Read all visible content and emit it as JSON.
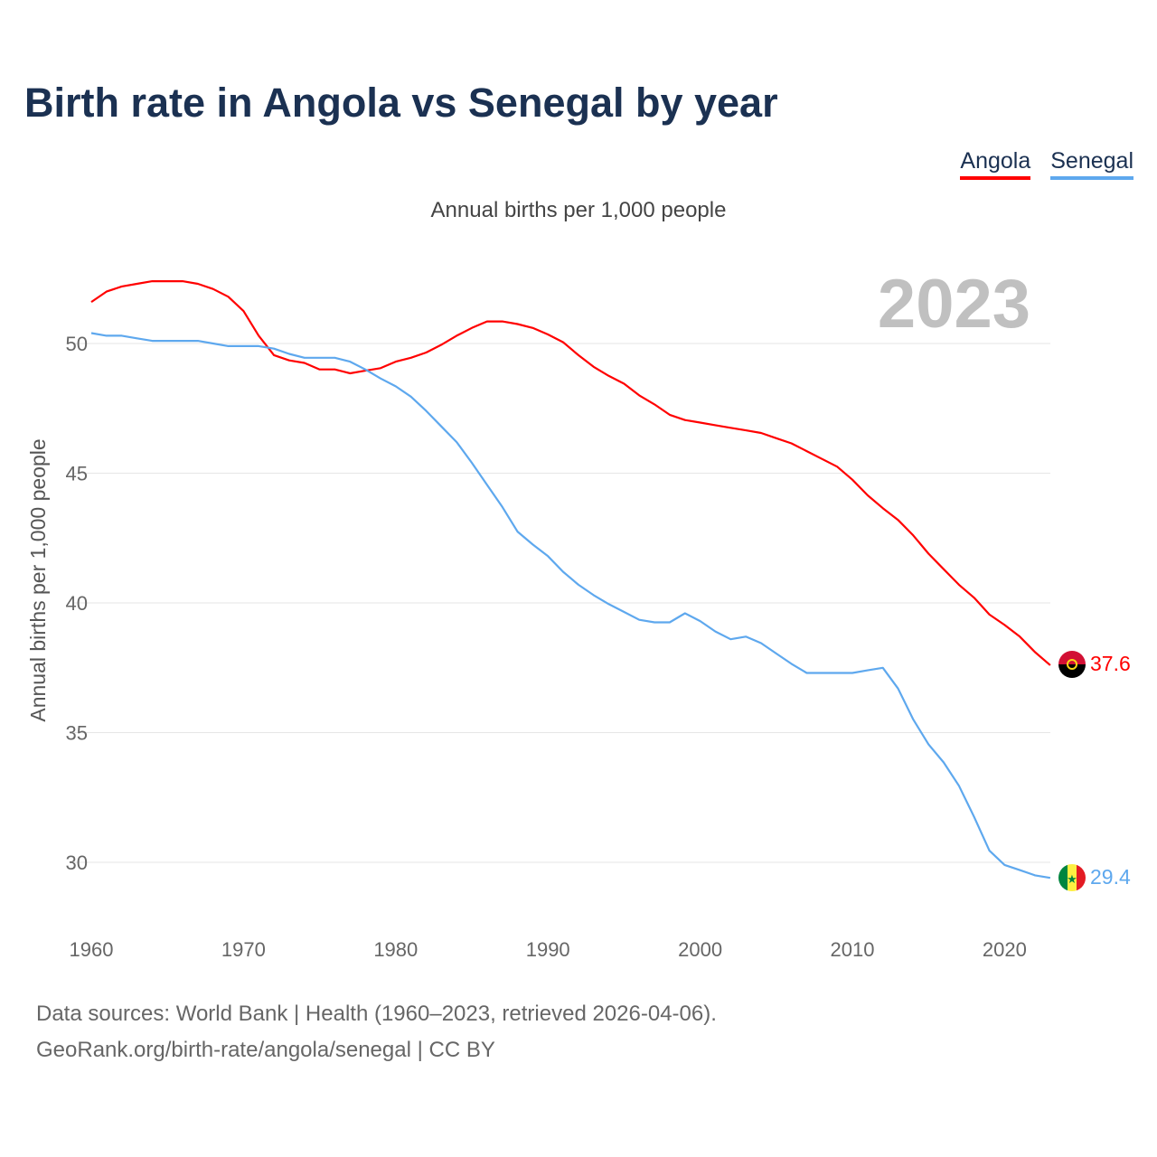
{
  "title": "Birth rate in Angola vs Senegal by year",
  "footer": {
    "line1": "Data sources: World Bank | Health (1960–2023, retrieved 2026-04-06).",
    "line2": "GeoRank.org/birth-rate/angola/senegal | CC BY"
  },
  "chart_data": {
    "type": "line",
    "title": "Birth rate in Angola vs Senegal by year",
    "subtitle": "Annual births per 1,000 people",
    "ylabel": "Annual births per 1,000 people",
    "xlabel": "",
    "year_label": "2023",
    "xlim": [
      1960,
      2023
    ],
    "ylim": [
      28,
      53
    ],
    "xticks": [
      "1960",
      "1970",
      "1980",
      "1990",
      "2000",
      "2010",
      "2020"
    ],
    "yticks": [
      "30",
      "35",
      "40",
      "45",
      "50"
    ],
    "grid": true,
    "legend_placement": "top-right",
    "x": [
      1960,
      1961,
      1962,
      1963,
      1964,
      1965,
      1966,
      1967,
      1968,
      1969,
      1970,
      1971,
      1972,
      1973,
      1974,
      1975,
      1976,
      1977,
      1978,
      1979,
      1980,
      1981,
      1982,
      1983,
      1984,
      1985,
      1986,
      1987,
      1988,
      1989,
      1990,
      1991,
      1992,
      1993,
      1994,
      1995,
      1996,
      1997,
      1998,
      1999,
      2000,
      2001,
      2002,
      2003,
      2004,
      2005,
      2006,
      2007,
      2008,
      2009,
      2010,
      2011,
      2012,
      2013,
      2014,
      2015,
      2016,
      2017,
      2018,
      2019,
      2020,
      2021,
      2022,
      2023
    ],
    "series": [
      {
        "name": "Angola",
        "color": "#ff0000",
        "end_label": "37.6",
        "values": [
          51.6,
          52.0,
          52.2,
          52.3,
          52.4,
          52.4,
          52.4,
          52.3,
          52.1,
          51.8,
          51.25,
          50.3,
          49.55,
          49.35,
          49.25,
          49.0,
          49.0,
          48.85,
          48.95,
          49.05,
          49.3,
          49.45,
          49.65,
          49.95,
          50.3,
          50.6,
          50.85,
          50.85,
          50.75,
          50.6,
          50.35,
          50.05,
          49.55,
          49.1,
          48.75,
          48.45,
          48.0,
          47.65,
          47.25,
          47.05,
          46.95,
          46.85,
          46.75,
          46.65,
          46.55,
          46.35,
          46.15,
          45.85,
          45.55,
          45.25,
          44.75,
          44.15,
          43.65,
          43.2,
          42.6,
          41.9,
          41.3,
          40.7,
          40.2,
          39.55,
          39.15,
          38.7,
          38.1,
          37.6
        ]
      },
      {
        "name": "Senegal",
        "color": "#5ea8ee",
        "end_label": "29.4",
        "values": [
          50.4,
          50.3,
          50.3,
          50.2,
          50.1,
          50.1,
          50.1,
          50.1,
          50.0,
          49.9,
          49.9,
          49.9,
          49.8,
          49.6,
          49.45,
          49.45,
          49.45,
          49.3,
          49.0,
          48.65,
          48.35,
          47.95,
          47.4,
          46.8,
          46.2,
          45.4,
          44.55,
          43.7,
          42.75,
          42.25,
          41.8,
          41.2,
          40.7,
          40.3,
          39.95,
          39.65,
          39.35,
          39.25,
          39.25,
          39.6,
          39.3,
          38.9,
          38.6,
          38.7,
          38.45,
          38.05,
          37.65,
          37.3,
          37.3,
          37.3,
          37.3,
          37.4,
          37.5,
          36.7,
          35.5,
          34.55,
          33.85,
          32.95,
          31.75,
          30.45,
          29.9,
          29.7,
          29.5,
          29.4
        ]
      }
    ]
  }
}
